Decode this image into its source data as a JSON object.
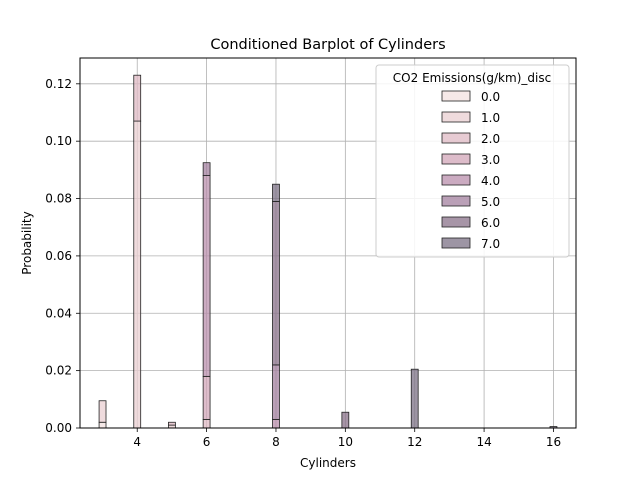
{
  "chart_data": {
    "type": "bar",
    "title": "Conditioned Barplot of Cylinders",
    "xlabel": "Cylinders",
    "ylabel": "Probability",
    "xlim": [
      2.35,
      16.65
    ],
    "ylim": [
      0,
      0.129
    ],
    "x_ticks": [
      4,
      6,
      8,
      10,
      12,
      14,
      16
    ],
    "y_ticks": [
      0.0,
      0.02,
      0.04,
      0.06,
      0.08,
      0.1,
      0.12
    ],
    "x_tick_labels": [
      "4",
      "6",
      "8",
      "10",
      "12",
      "14",
      "16"
    ],
    "y_tick_labels": [
      "0.00",
      "0.02",
      "0.04",
      "0.06",
      "0.08",
      "0.10",
      "0.12"
    ],
    "grid": true,
    "stacked": true,
    "bar_width": 0.2,
    "legend": {
      "title": "CO2 Emissions(g/km)_disc",
      "placement": "top-right",
      "entries": [
        "0.0",
        "1.0",
        "2.0",
        "3.0",
        "4.0",
        "5.0",
        "6.0",
        "7.0"
      ]
    },
    "colors": [
      "#f3e2e0",
      "#eacfd1",
      "#dfbac4",
      "#d1a5b8",
      "#b98fac",
      "#a3809f",
      "#8a7289",
      "#7c7285"
    ],
    "series": [
      {
        "name": "0.0",
        "points": [
          [
            3,
            0.002
          ]
        ]
      },
      {
        "name": "1.0",
        "points": [
          [
            3,
            0.0075
          ],
          [
            4,
            0.107
          ],
          [
            5,
            0.001
          ]
        ]
      },
      {
        "name": "2.0",
        "points": [
          [
            4,
            0.016
          ],
          [
            5,
            0.001
          ],
          [
            6,
            0.003
          ]
        ]
      },
      {
        "name": "3.0",
        "points": [
          [
            6,
            0.015
          ]
        ]
      },
      {
        "name": "4.0",
        "points": [
          [
            6,
            0.07
          ],
          [
            8,
            0.003
          ]
        ]
      },
      {
        "name": "5.0",
        "points": [
          [
            6,
            0.0045
          ],
          [
            8,
            0.019
          ]
        ]
      },
      {
        "name": "6.0",
        "points": [
          [
            8,
            0.057
          ],
          [
            10,
            0.0055
          ]
        ]
      },
      {
        "name": "7.0",
        "points": [
          [
            8,
            0.006
          ],
          [
            12,
            0.0205
          ],
          [
            16,
            0.0005
          ]
        ]
      }
    ]
  }
}
